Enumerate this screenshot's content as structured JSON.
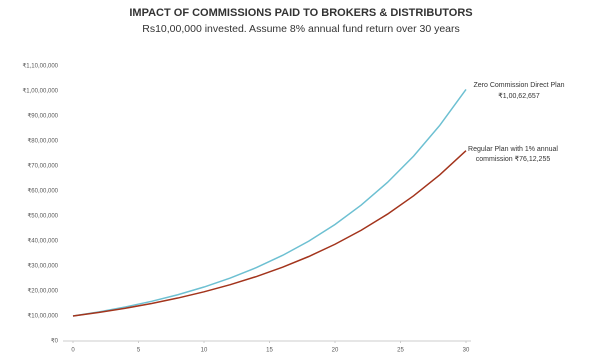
{
  "chart_data": {
    "type": "line",
    "title": "IMPACT OF COMMISSIONS PAID TO BROKERS & DISTRIBUTORS",
    "subtitle": "Rs10,00,000 invested. Assume 8% annual fund return over 30 years",
    "x": [
      0,
      2,
      4,
      6,
      8,
      10,
      12,
      14,
      16,
      18,
      20,
      22,
      24,
      26,
      28,
      30
    ],
    "series": [
      {
        "name": "Zero Commission Direct Plan",
        "color": "#6dc0d2",
        "values": [
          1000000,
          1166400,
          1360489,
          1586874,
          1850930,
          2158925,
          2518170,
          2937194,
          3425943,
          3996020,
          4660957,
          5436540,
          6341181,
          7396353,
          8627106,
          10062657
        ]
      },
      {
        "name": "Regular Plan with 1% annual commission",
        "color": "#a3341c",
        "values": [
          1000000,
          1144900,
          1310796,
          1500730,
          1718186,
          1967151,
          2252192,
          2578534,
          2952164,
          3379932,
          3869684,
          4430402,
          5072367,
          5807353,
          6648838,
          7612255
        ]
      }
    ],
    "annotations": [
      [
        "Zero Commission Direct Plan",
        "₹1,00,62,657"
      ],
      [
        "Regular Plan with 1% annual",
        "commission ₹76,12,255"
      ]
    ],
    "xlim": [
      0,
      30
    ],
    "xticks": [
      0,
      5,
      10,
      15,
      20,
      25,
      30
    ],
    "ylim": [
      0,
      11000000
    ],
    "yticks": [
      {
        "value": 0,
        "label": "₹0"
      },
      {
        "value": 1000000,
        "label": "₹10,00,000"
      },
      {
        "value": 2000000,
        "label": "₹20,00,000"
      },
      {
        "value": 3000000,
        "label": "₹30,00,000"
      },
      {
        "value": 4000000,
        "label": "₹40,00,000"
      },
      {
        "value": 5000000,
        "label": "₹50,00,000"
      },
      {
        "value": 6000000,
        "label": "₹60,00,000"
      },
      {
        "value": 7000000,
        "label": "₹70,00,000"
      },
      {
        "value": 8000000,
        "label": "₹80,00,000"
      },
      {
        "value": 9000000,
        "label": "₹90,00,000"
      },
      {
        "value": 10000000,
        "label": "₹1,00,00,000"
      },
      {
        "value": 11000000,
        "label": "₹1,10,00,000"
      }
    ],
    "grid": false
  }
}
